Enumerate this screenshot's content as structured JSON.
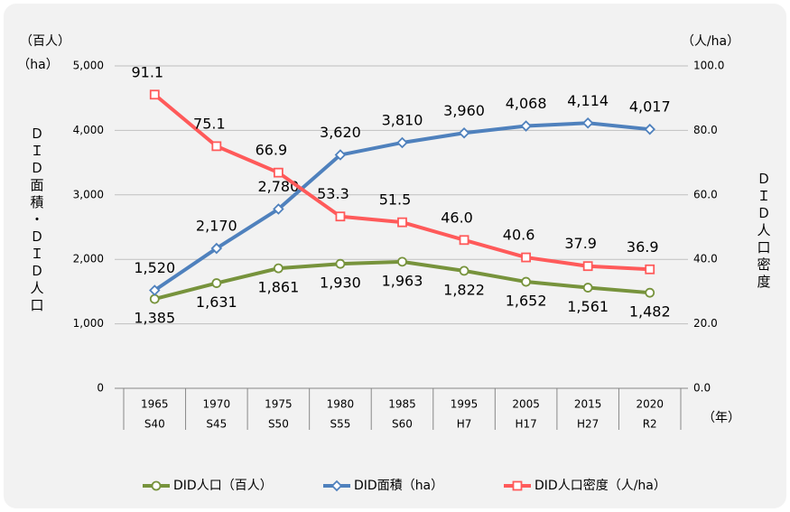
{
  "chart_data": {
    "type": "line",
    "categories": [
      [
        "1965",
        "S40"
      ],
      [
        "1970",
        "S45"
      ],
      [
        "1975",
        "S50"
      ],
      [
        "1980",
        "S55"
      ],
      [
        "1985",
        "S60"
      ],
      [
        "1995",
        "H7"
      ],
      [
        "2005",
        "H17"
      ],
      [
        "2015",
        "H27"
      ],
      [
        "2020",
        "R2"
      ]
    ],
    "y_unit_labels": [
      "（百人）",
      "（ha）"
    ],
    "y_label": "ＤＩＤ面積・ＤＩＤ人口",
    "y2_unit_label": "（人/ha）",
    "y2_label": "ＤＩＤ人口密度",
    "x_label": "（年）",
    "ylim": [
      0,
      5000
    ],
    "yticks": [
      0,
      {
        "value": 1000,
        "label": "1,000"
      },
      {
        "value": 2000,
        "label": "2,000"
      },
      {
        "value": 3000,
        "label": "3,000"
      },
      {
        "value": 4000,
        "label": "4,000"
      },
      {
        "value": 5000,
        "label": "5,000"
      }
    ],
    "y2lim": [
      0,
      100
    ],
    "y2ticks": [
      {
        "value": 0,
        "label": "0.0"
      },
      {
        "value": 20,
        "label": "20.0"
      },
      {
        "value": 40,
        "label": "40.0"
      },
      {
        "value": 60,
        "label": "60.0"
      },
      {
        "value": 80,
        "label": "80.0"
      },
      {
        "value": 100,
        "label": "100.0"
      }
    ],
    "grid": true,
    "legend": "bottom",
    "series": [
      {
        "name": "DID人口（百人）",
        "color": "#77933c",
        "marker": "circle",
        "label_pos": "below",
        "values": [
          1385,
          1631,
          1861,
          1930,
          1963,
          1822,
          1652,
          1561,
          1482
        ],
        "value_labels": [
          "1,385",
          "1,631",
          "1,861",
          "1,930",
          "1,963",
          "1,822",
          "1,652",
          "1,561",
          "1,482"
        ]
      },
      {
        "name": "DID面積（ha）",
        "color": "#4f81bd",
        "marker": "diamond",
        "label_pos": "above",
        "values": [
          1520,
          2170,
          2780,
          3620,
          3810,
          3960,
          4068,
          4114,
          4017
        ],
        "value_labels": [
          "1,520",
          "2,170",
          "2,780",
          "3,620",
          "3,810",
          "3,960",
          "4,068",
          "4,114",
          "4,017"
        ]
      },
      {
        "name": "DID人口密度（人/ha）",
        "color": "#ff5a5a",
        "marker": "square",
        "label_pos": "above",
        "axis": "y2",
        "values": [
          91.1,
          75.1,
          66.9,
          53.3,
          51.5,
          46.0,
          40.6,
          37.9,
          36.9
        ],
        "value_labels": [
          "91.1",
          "75.1",
          "66.9",
          "53.3",
          "51.5",
          "46.0",
          "40.6",
          "37.9",
          "36.9"
        ]
      }
    ]
  }
}
